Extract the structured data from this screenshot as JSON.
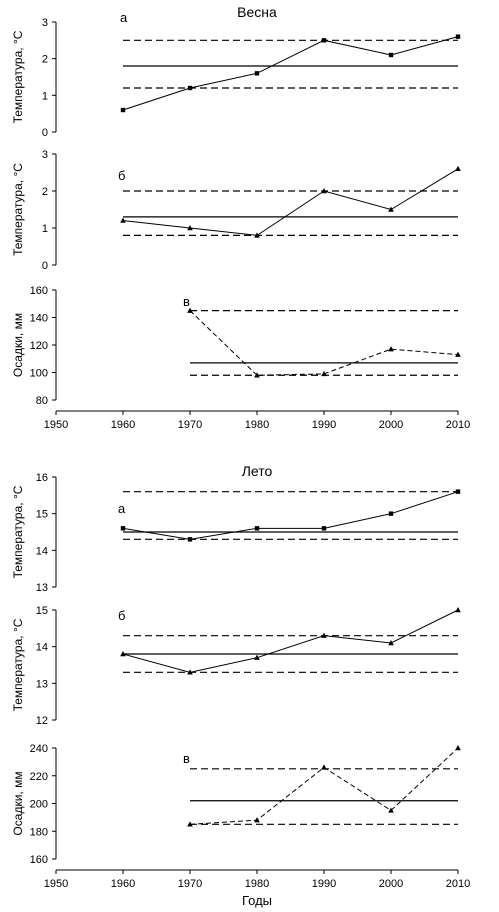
{
  "chart_data": [
    {
      "type": "line",
      "season": "Весна",
      "panel": "а",
      "ylabel": "Температура, °С",
      "ylim": [
        0,
        3
      ],
      "yticks": [
        "0",
        "1",
        "2",
        "3"
      ],
      "x": [
        1960,
        1970,
        1980,
        1990,
        2000,
        2010
      ],
      "values": [
        0.6,
        1.2,
        1.6,
        2.5,
        2.1,
        2.6
      ],
      "mean": 1.8,
      "lower": 1.2,
      "upper": 2.5,
      "xlim": [
        1960,
        2010
      ]
    },
    {
      "type": "line",
      "panel": "б",
      "ylabel": "Температура, °С",
      "ylim": [
        0,
        3
      ],
      "yticks": [
        "0",
        "1",
        "2",
        "3"
      ],
      "x": [
        1960,
        1970,
        1980,
        1990,
        2000,
        2010
      ],
      "values": [
        1.2,
        1.0,
        0.8,
        2.0,
        1.5,
        2.6
      ],
      "mean": 1.3,
      "lower": 0.8,
      "upper": 2.0,
      "xlim": [
        1960,
        2010
      ]
    },
    {
      "type": "line",
      "panel": "в",
      "ylabel": "Осадки, мм",
      "ylim": [
        80,
        160
      ],
      "yticks": [
        "80",
        "100",
        "120",
        "140",
        "160"
      ],
      "x": [
        1970,
        1980,
        1990,
        2000,
        2010
      ],
      "values": [
        145,
        98,
        99,
        117,
        113
      ],
      "mean": 107,
      "lower": 98,
      "upper": 145,
      "xlim": [
        1970,
        2010
      ]
    },
    {
      "type": "line",
      "season": "Лето",
      "panel": "а",
      "ylabel": "Температура, °С",
      "ylim": [
        13,
        16
      ],
      "yticks": [
        "13",
        "14",
        "15",
        "16"
      ],
      "x": [
        1960,
        1970,
        1980,
        1990,
        2000,
        2010
      ],
      "values": [
        14.6,
        14.3,
        14.6,
        14.6,
        15.0,
        15.6
      ],
      "mean": 14.5,
      "lower": 14.3,
      "upper": 15.6,
      "xlim": [
        1960,
        2010
      ]
    },
    {
      "type": "line",
      "panel": "б",
      "ylabel": "Температура, °С",
      "ylim": [
        12,
        15
      ],
      "yticks": [
        "12",
        "13",
        "14",
        "15"
      ],
      "x": [
        1960,
        1970,
        1980,
        1990,
        2000,
        2010
      ],
      "values": [
        13.8,
        13.3,
        13.7,
        14.3,
        14.1,
        15.0
      ],
      "mean": 13.8,
      "lower": 13.3,
      "upper": 14.3,
      "xlim": [
        1960,
        2010
      ]
    },
    {
      "type": "line",
      "panel": "в",
      "ylabel": "Осадки, мм",
      "ylim": [
        160,
        240
      ],
      "yticks": [
        "160",
        "180",
        "200",
        "220",
        "240"
      ],
      "x": [
        1970,
        1980,
        1990,
        2000,
        2010
      ],
      "values": [
        185,
        188,
        226,
        195,
        240
      ],
      "mean": 202,
      "lower": 185,
      "upper": 225,
      "xlim": [
        1970,
        2010
      ]
    }
  ],
  "xaxis": {
    "label": "Годы",
    "range": [
      1950,
      2010
    ],
    "ticks": [
      "1950",
      "1960",
      "1970",
      "1980",
      "1990",
      "2000",
      "2010"
    ]
  }
}
